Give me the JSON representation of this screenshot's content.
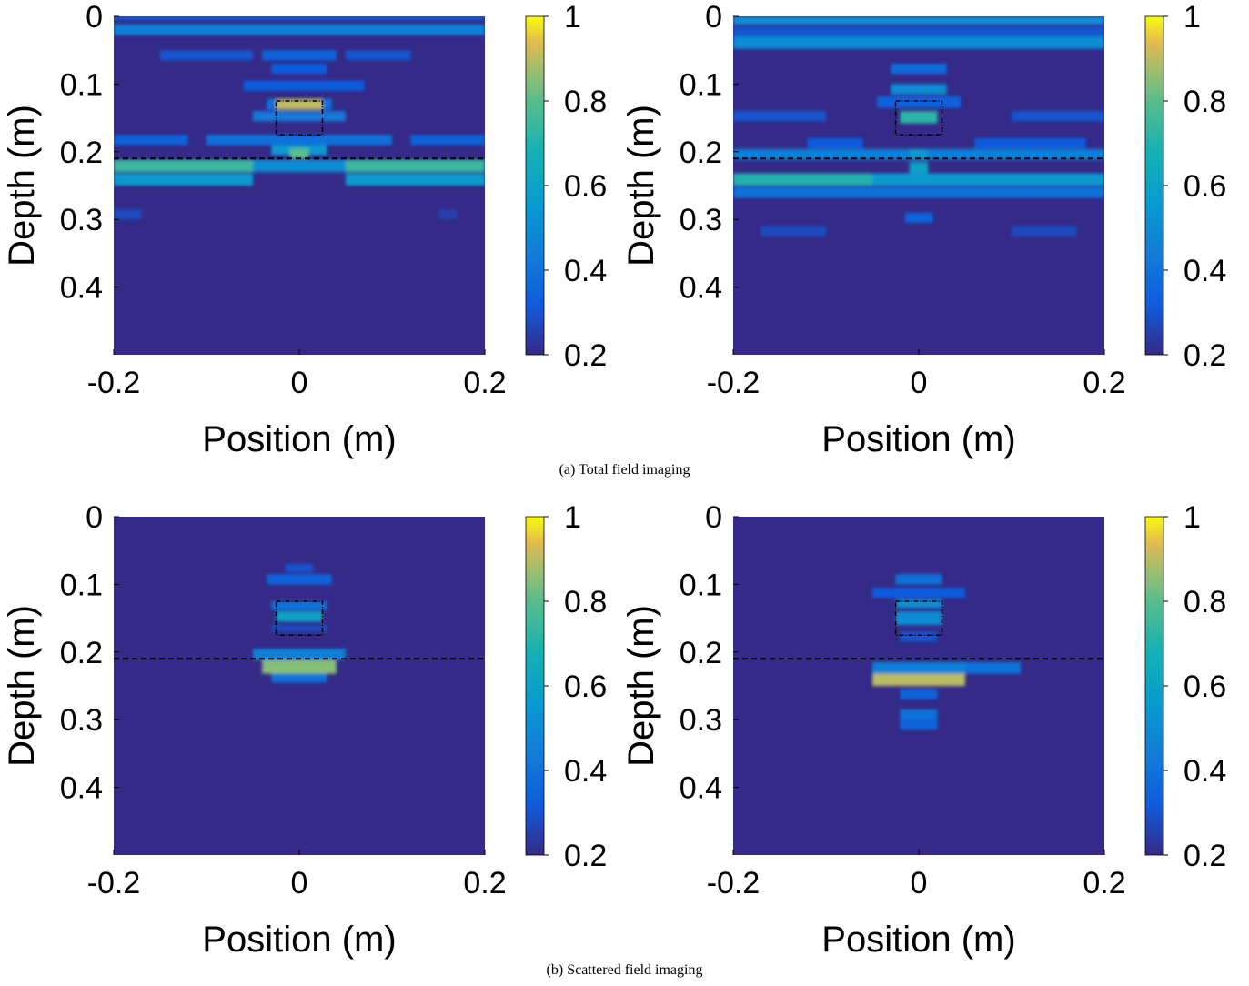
{
  "captions": {
    "a": "(a) Total field imaging",
    "b": "(b) Scattered field imaging"
  },
  "chart_data": [
    {
      "type": "heatmap",
      "panel": "a-left",
      "xlabel": "Position (m)",
      "ylabel": "Depth (m)",
      "xlim": [
        -0.2,
        0.2
      ],
      "ylim": [
        0,
        0.5
      ],
      "y_reversed": true,
      "x_ticks": [
        "-0.2",
        "0",
        "0.2"
      ],
      "y_ticks": [
        "0",
        "0.1",
        "0.2",
        "0.3",
        "0.4"
      ],
      "colorbar": {
        "range": [
          0.2,
          1
        ],
        "ticks": [
          "0.2",
          "0.4",
          "0.6",
          "0.8",
          "1"
        ],
        "colormap": "parula"
      },
      "background_value": 0.2,
      "interface_depth": 0.21,
      "target_box": {
        "x": [
          -0.025,
          0.025
        ],
        "y": [
          0.125,
          0.175
        ]
      },
      "cells": [
        {
          "x": [
            -0.2,
            0.2
          ],
          "y": [
            0.0,
            0.005
          ],
          "v": 0.35
        },
        {
          "x": [
            -0.2,
            0.2
          ],
          "y": [
            0.012,
            0.028
          ],
          "v": 0.45
        },
        {
          "x": [
            -0.15,
            -0.05
          ],
          "y": [
            0.05,
            0.065
          ],
          "v": 0.3
        },
        {
          "x": [
            -0.04,
            0.04
          ],
          "y": [
            0.05,
            0.065
          ],
          "v": 0.35
        },
        {
          "x": [
            0.05,
            0.12
          ],
          "y": [
            0.05,
            0.065
          ],
          "v": 0.3
        },
        {
          "x": [
            -0.03,
            0.03
          ],
          "y": [
            0.07,
            0.085
          ],
          "v": 0.32
        },
        {
          "x": [
            -0.06,
            0.07
          ],
          "y": [
            0.095,
            0.11
          ],
          "v": 0.32
        },
        {
          "x": [
            -0.025,
            0.025
          ],
          "y": [
            0.122,
            0.138
          ],
          "v": 0.9
        },
        {
          "x": [
            -0.035,
            -0.025
          ],
          "y": [
            0.122,
            0.138
          ],
          "v": 0.4
        },
        {
          "x": [
            0.025,
            0.035
          ],
          "y": [
            0.122,
            0.138
          ],
          "v": 0.4
        },
        {
          "x": [
            -0.05,
            0.05
          ],
          "y": [
            0.14,
            0.155
          ],
          "v": 0.42
        },
        {
          "x": [
            -0.2,
            -0.12
          ],
          "y": [
            0.175,
            0.19
          ],
          "v": 0.35
        },
        {
          "x": [
            -0.1,
            0.1
          ],
          "y": [
            0.175,
            0.19
          ],
          "v": 0.4
        },
        {
          "x": [
            0.12,
            0.2
          ],
          "y": [
            0.175,
            0.19
          ],
          "v": 0.35
        },
        {
          "x": [
            -0.03,
            0.03
          ],
          "y": [
            0.19,
            0.205
          ],
          "v": 0.55
        },
        {
          "x": [
            -0.2,
            -0.05
          ],
          "y": [
            0.212,
            0.23
          ],
          "v": 0.75
        },
        {
          "x": [
            -0.05,
            0.05
          ],
          "y": [
            0.212,
            0.23
          ],
          "v": 0.5
        },
        {
          "x": [
            0.05,
            0.2
          ],
          "y": [
            0.212,
            0.23
          ],
          "v": 0.75
        },
        {
          "x": [
            -0.01,
            0.01
          ],
          "y": [
            0.195,
            0.21
          ],
          "v": 0.8
        },
        {
          "x": [
            -0.2,
            -0.05
          ],
          "y": [
            0.232,
            0.25
          ],
          "v": 0.55
        },
        {
          "x": [
            0.05,
            0.2
          ],
          "y": [
            0.232,
            0.25
          ],
          "v": 0.55
        },
        {
          "x": [
            -0.2,
            -0.17
          ],
          "y": [
            0.285,
            0.3
          ],
          "v": 0.28
        },
        {
          "x": [
            0.15,
            0.17
          ],
          "y": [
            0.285,
            0.3
          ],
          "v": 0.25
        }
      ]
    },
    {
      "type": "heatmap",
      "panel": "a-right",
      "xlabel": "Position (m)",
      "ylabel": "Depth (m)",
      "xlim": [
        -0.2,
        0.2
      ],
      "ylim": [
        0,
        0.5
      ],
      "y_reversed": true,
      "x_ticks": [
        "-0.2",
        "0",
        "0.2"
      ],
      "y_ticks": [
        "0",
        "0.1",
        "0.2",
        "0.3",
        "0.4"
      ],
      "colorbar": {
        "range": [
          0.2,
          1
        ],
        "ticks": [
          "0.2",
          "0.4",
          "0.6",
          "0.8",
          "1"
        ],
        "colormap": "parula"
      },
      "background_value": 0.2,
      "interface_depth": 0.21,
      "target_box": {
        "x": [
          -0.025,
          0.025
        ],
        "y": [
          0.125,
          0.175
        ]
      },
      "cells": [
        {
          "x": [
            -0.2,
            0.2
          ],
          "y": [
            0.0,
            0.012
          ],
          "v": 0.5
        },
        {
          "x": [
            -0.2,
            0.2
          ],
          "y": [
            0.015,
            0.03
          ],
          "v": 0.3
        },
        {
          "x": [
            -0.2,
            0.2
          ],
          "y": [
            0.03,
            0.048
          ],
          "v": 0.5
        },
        {
          "x": [
            -0.03,
            0.03
          ],
          "y": [
            0.07,
            0.085
          ],
          "v": 0.38
        },
        {
          "x": [
            -0.03,
            0.03
          ],
          "y": [
            0.1,
            0.115
          ],
          "v": 0.5
        },
        {
          "x": [
            -0.045,
            0.045
          ],
          "y": [
            0.118,
            0.135
          ],
          "v": 0.35
        },
        {
          "x": [
            -0.02,
            0.02
          ],
          "y": [
            0.14,
            0.158
          ],
          "v": 0.72
        },
        {
          "x": [
            -0.2,
            -0.1
          ],
          "y": [
            0.14,
            0.155
          ],
          "v": 0.3
        },
        {
          "x": [
            0.1,
            0.2
          ],
          "y": [
            0.14,
            0.155
          ],
          "v": 0.3
        },
        {
          "x": [
            -0.12,
            -0.06
          ],
          "y": [
            0.18,
            0.195
          ],
          "v": 0.32
        },
        {
          "x": [
            0.06,
            0.18
          ],
          "y": [
            0.18,
            0.195
          ],
          "v": 0.32
        },
        {
          "x": [
            -0.2,
            0.2
          ],
          "y": [
            0.196,
            0.212
          ],
          "v": 0.45
        },
        {
          "x": [
            -0.01,
            0.01
          ],
          "y": [
            0.196,
            0.212
          ],
          "v": 0.55
        },
        {
          "x": [
            -0.2,
            -0.05
          ],
          "y": [
            0.232,
            0.25
          ],
          "v": 0.7
        },
        {
          "x": [
            -0.05,
            0.05
          ],
          "y": [
            0.232,
            0.25
          ],
          "v": 0.55
        },
        {
          "x": [
            0.05,
            0.2
          ],
          "y": [
            0.232,
            0.25
          ],
          "v": 0.55
        },
        {
          "x": [
            -0.01,
            0.01
          ],
          "y": [
            0.215,
            0.232
          ],
          "v": 0.6
        },
        {
          "x": [
            -0.2,
            0.2
          ],
          "y": [
            0.252,
            0.268
          ],
          "v": 0.4
        },
        {
          "x": [
            -0.015,
            0.015
          ],
          "y": [
            0.29,
            0.305
          ],
          "v": 0.35
        },
        {
          "x": [
            -0.17,
            -0.1
          ],
          "y": [
            0.31,
            0.325
          ],
          "v": 0.28
        },
        {
          "x": [
            0.1,
            0.17
          ],
          "y": [
            0.31,
            0.325
          ],
          "v": 0.28
        }
      ]
    },
    {
      "type": "heatmap",
      "panel": "b-left",
      "xlabel": "Position (m)",
      "ylabel": "Depth (m)",
      "xlim": [
        -0.2,
        0.2
      ],
      "ylim": [
        0,
        0.5
      ],
      "y_reversed": true,
      "x_ticks": [
        "-0.2",
        "0",
        "0.2"
      ],
      "y_ticks": [
        "0",
        "0.1",
        "0.2",
        "0.3",
        "0.4"
      ],
      "colorbar": {
        "range": [
          0.2,
          1
        ],
        "ticks": [
          "0.2",
          "0.4",
          "0.6",
          "0.8",
          "1"
        ],
        "colormap": "parula"
      },
      "background_value": 0.2,
      "interface_depth": 0.21,
      "target_box": {
        "x": [
          -0.025,
          0.025
        ],
        "y": [
          0.125,
          0.175
        ]
      },
      "cells": [
        {
          "x": [
            -0.015,
            0.015
          ],
          "y": [
            0.07,
            0.082
          ],
          "v": 0.3
        },
        {
          "x": [
            -0.035,
            0.035
          ],
          "y": [
            0.085,
            0.1
          ],
          "v": 0.35
        },
        {
          "x": [
            -0.03,
            0.03
          ],
          "y": [
            0.125,
            0.138
          ],
          "v": 0.4
        },
        {
          "x": [
            -0.025,
            0.025
          ],
          "y": [
            0.14,
            0.155
          ],
          "v": 0.6
        },
        {
          "x": [
            -0.03,
            0.03
          ],
          "y": [
            0.16,
            0.17
          ],
          "v": 0.28
        },
        {
          "x": [
            -0.05,
            0.05
          ],
          "y": [
            0.195,
            0.212
          ],
          "v": 0.45
        },
        {
          "x": [
            -0.04,
            0.04
          ],
          "y": [
            0.212,
            0.232
          ],
          "v": 0.85
        },
        {
          "x": [
            -0.03,
            0.03
          ],
          "y": [
            0.232,
            0.245
          ],
          "v": 0.4
        }
      ]
    },
    {
      "type": "heatmap",
      "panel": "b-right",
      "xlabel": "Position (m)",
      "ylabel": "Depth (m)",
      "xlim": [
        -0.2,
        0.2
      ],
      "ylim": [
        0,
        0.5
      ],
      "y_reversed": true,
      "x_ticks": [
        "-0.2",
        "0",
        "0.2"
      ],
      "y_ticks": [
        "0",
        "0.1",
        "0.2",
        "0.3",
        "0.4"
      ],
      "colorbar": {
        "range": [
          0.2,
          1
        ],
        "ticks": [
          "0.2",
          "0.4",
          "0.6",
          "0.8",
          "1"
        ],
        "colormap": "parula"
      },
      "background_value": 0.2,
      "interface_depth": 0.21,
      "target_box": {
        "x": [
          -0.025,
          0.025
        ],
        "y": [
          0.125,
          0.175
        ]
      },
      "cells": [
        {
          "x": [
            -0.025,
            0.025
          ],
          "y": [
            0.085,
            0.1
          ],
          "v": 0.4
        },
        {
          "x": [
            -0.05,
            0.05
          ],
          "y": [
            0.105,
            0.12
          ],
          "v": 0.32
        },
        {
          "x": [
            -0.025,
            0.025
          ],
          "y": [
            0.122,
            0.135
          ],
          "v": 0.5
        },
        {
          "x": [
            -0.025,
            0.025
          ],
          "y": [
            0.14,
            0.16
          ],
          "v": 0.5
        },
        {
          "x": [
            -0.02,
            0.02
          ],
          "y": [
            0.17,
            0.185
          ],
          "v": 0.3
        },
        {
          "x": [
            -0.05,
            0.05
          ],
          "y": [
            0.215,
            0.232
          ],
          "v": 0.45
        },
        {
          "x": [
            0.05,
            0.11
          ],
          "y": [
            0.215,
            0.232
          ],
          "v": 0.4
        },
        {
          "x": [
            -0.05,
            0.05
          ],
          "y": [
            0.232,
            0.25
          ],
          "v": 0.9
        },
        {
          "x": [
            -0.02,
            0.02
          ],
          "y": [
            0.255,
            0.27
          ],
          "v": 0.35
        },
        {
          "x": [
            -0.02,
            0.02
          ],
          "y": [
            0.285,
            0.3
          ],
          "v": 0.4
        },
        {
          "x": [
            -0.02,
            0.02
          ],
          "y": [
            0.3,
            0.315
          ],
          "v": 0.35
        }
      ]
    }
  ]
}
